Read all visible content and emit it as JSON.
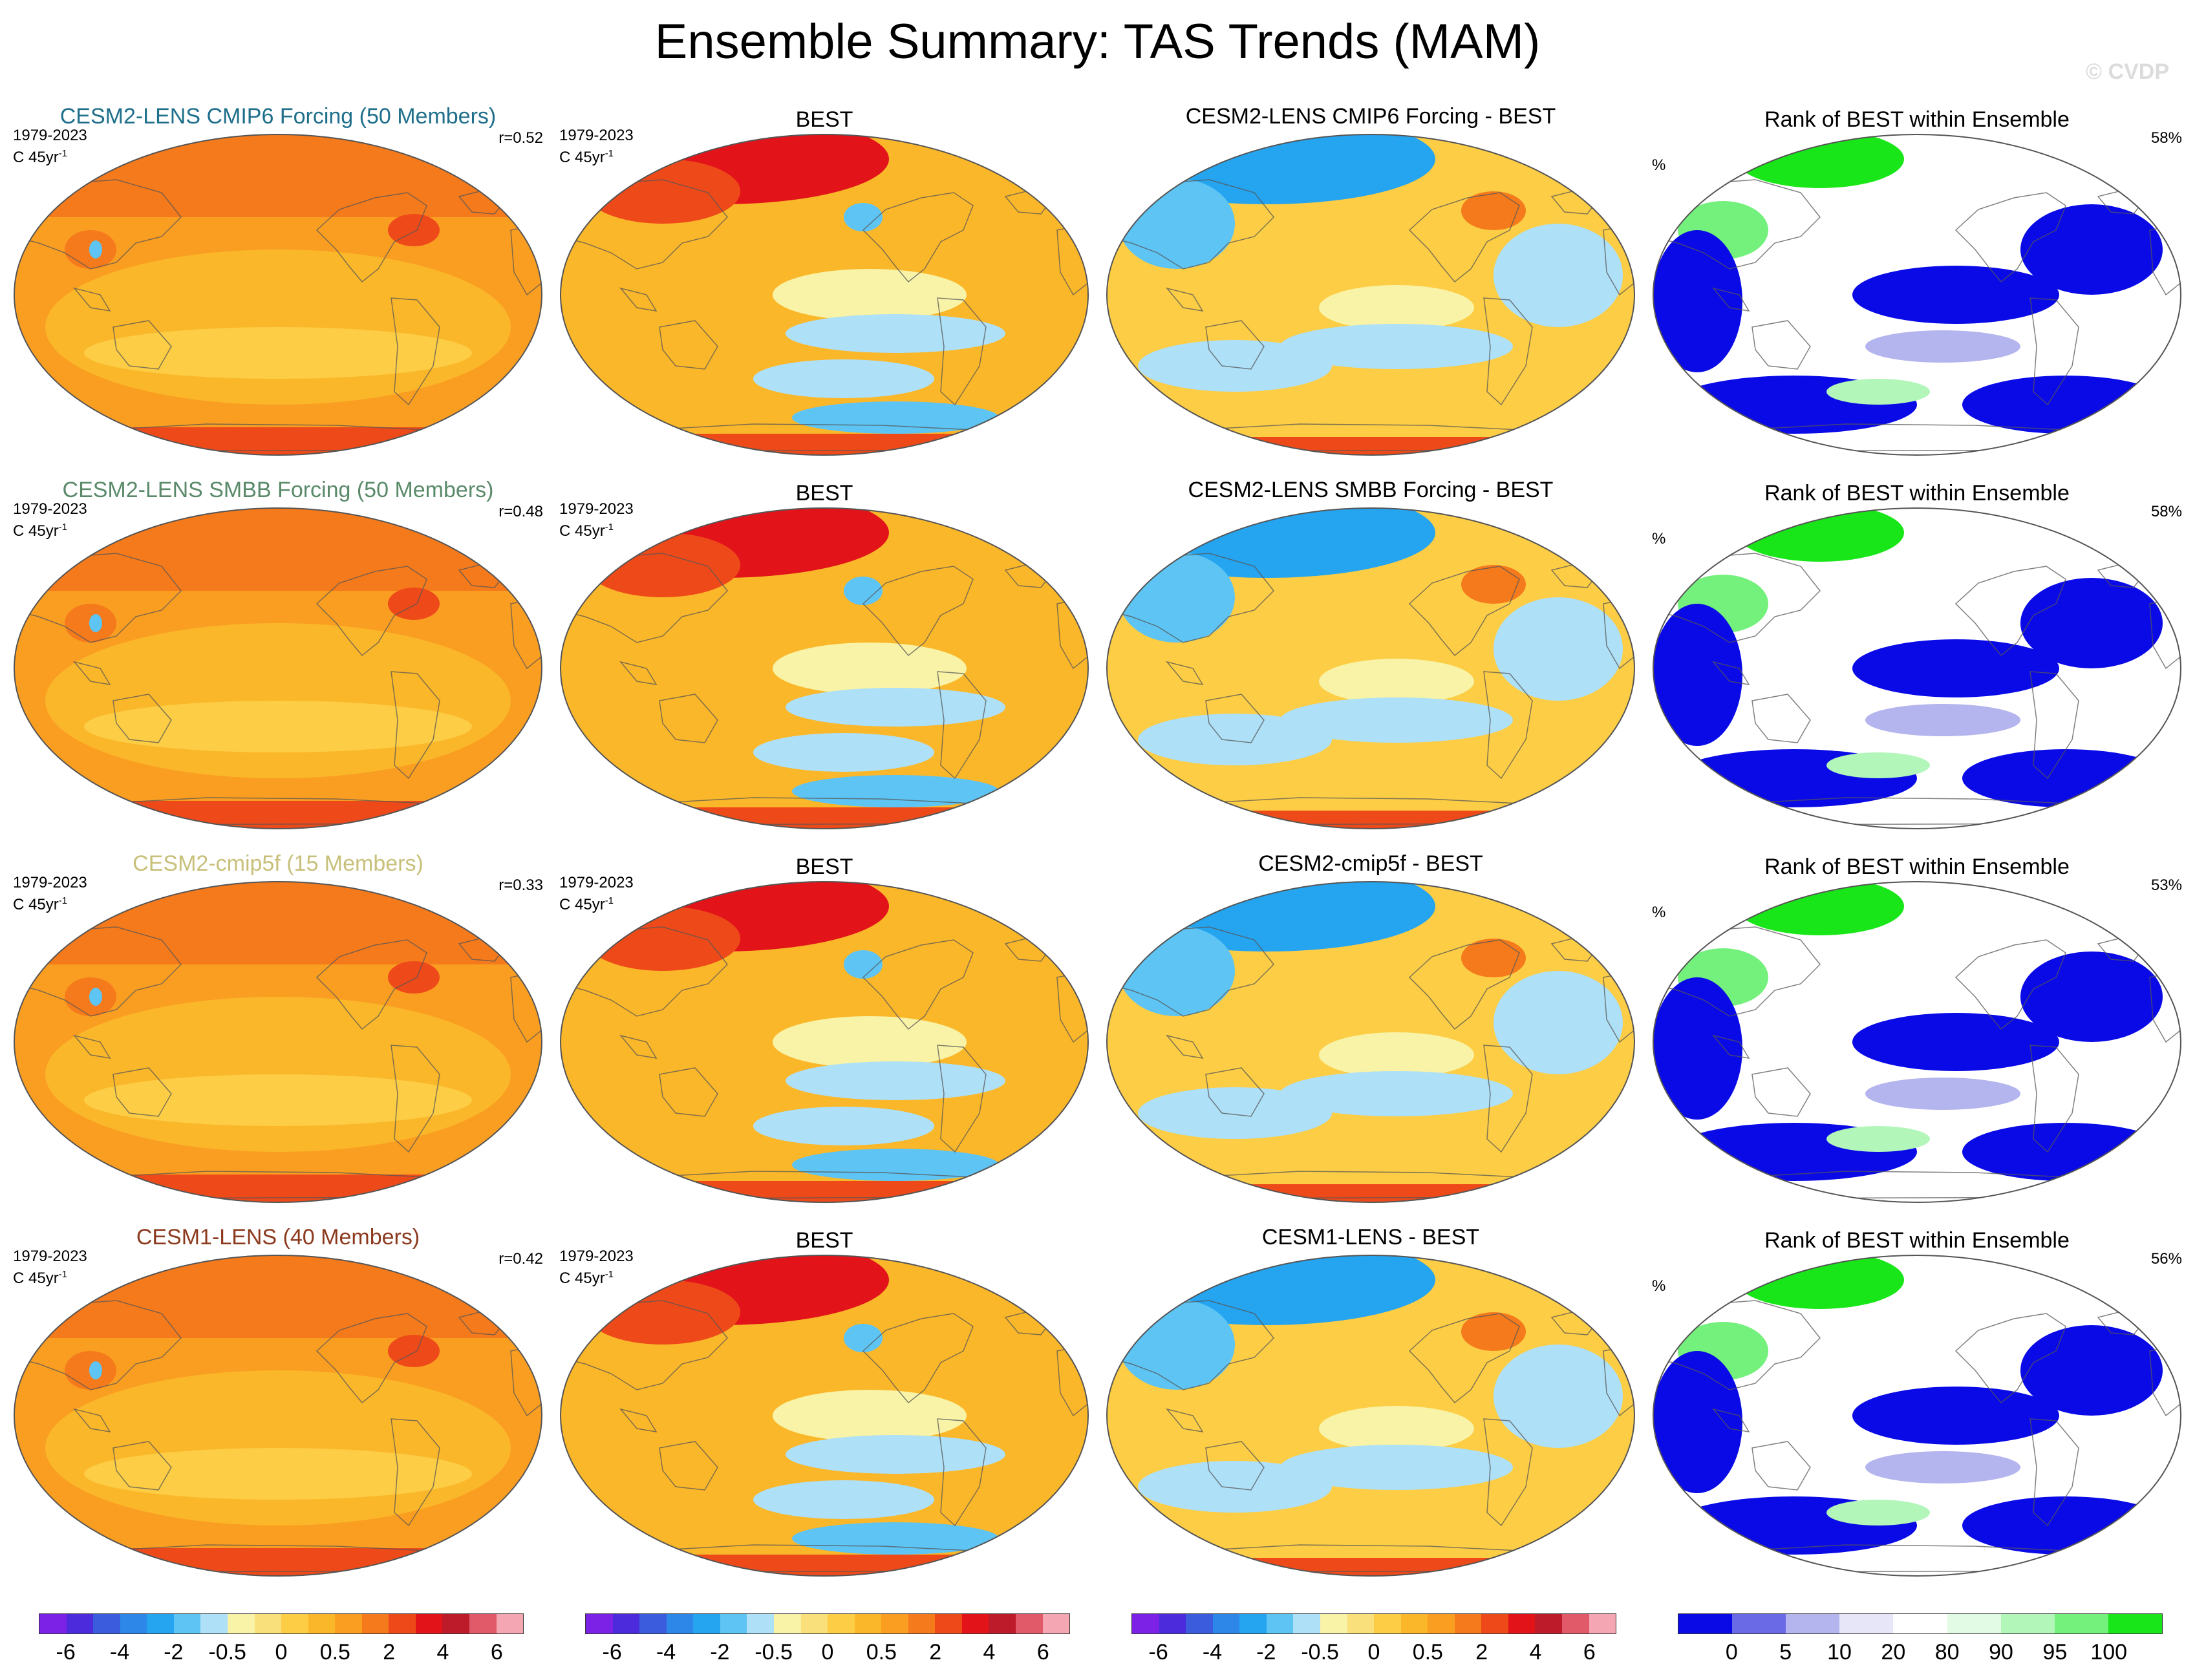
{
  "figure": {
    "title": "Ensemble Summary: TAS Trends (MAM)",
    "watermark": "© CVDP"
  },
  "colors": {
    "row_titles": [
      "#1f6f8b",
      "#5a8a6a",
      "#c8c07a",
      "#8b3a1e"
    ],
    "trend_palette": [
      "#7b22e6",
      "#4b2bdc",
      "#3b5ddd",
      "#2d87e8",
      "#25a4f0",
      "#5dc4f4",
      "#aee0f7",
      "#f8f3a6",
      "#f9e07a",
      "#fccd45",
      "#fbb72a",
      "#fa9e22",
      "#f57a1c",
      "#ee4a19",
      "#e2141a",
      "#bd1a2a",
      "#e05a6a",
      "#f4a6b2"
    ],
    "rank_palette": [
      "#0a0ae6",
      "#6a6ae6",
      "#b4b4ee",
      "#e6e6f8",
      "#ffffff",
      "#e2fbe4",
      "#b2f6ba",
      "#74f07c",
      "#19e619"
    ]
  },
  "chart_data": {
    "type": "map-panels",
    "rows": [
      {
        "ensemble_title": "CESM2-LENS CMIP6 Forcing (50 Members)",
        "period": "1979-2023",
        "units": "C 45yr",
        "units_exp": "-1",
        "pattern_correlation": "r=0.52",
        "obs_title": "BEST",
        "diff_title": "CESM2-LENS CMIP6 Forcing - BEST",
        "rank_title": "Rank of BEST within Ensemble",
        "rank_units": "%",
        "rank_percent": "58%"
      },
      {
        "ensemble_title": "CESM2-LENS SMBB Forcing (50 Members)",
        "period": "1979-2023",
        "units": "C 45yr",
        "units_exp": "-1",
        "pattern_correlation": "r=0.48",
        "obs_title": "BEST",
        "diff_title": "CESM2-LENS SMBB Forcing - BEST",
        "rank_title": "Rank of BEST within Ensemble",
        "rank_units": "%",
        "rank_percent": "58%"
      },
      {
        "ensemble_title": "CESM2-cmip5f (15 Members)",
        "period": "1979-2023",
        "units": "C 45yr",
        "units_exp": "-1",
        "pattern_correlation": "r=0.33",
        "obs_title": "BEST",
        "diff_title": "CESM2-cmip5f - BEST",
        "rank_title": "Rank of BEST within Ensemble",
        "rank_units": "%",
        "rank_percent": "53%"
      },
      {
        "ensemble_title": "CESM1-LENS (40 Members)",
        "period": "1979-2023",
        "units": "C 45yr",
        "units_exp": "-1",
        "pattern_correlation": "r=0.42",
        "obs_title": "BEST",
        "diff_title": "CESM1-LENS - BEST",
        "rank_title": "Rank of BEST within Ensemble",
        "rank_units": "%",
        "rank_percent": "56%"
      }
    ],
    "trend_colorbar_labels": [
      "-6",
      "-4",
      "-2",
      "-0.5",
      "0",
      "0.5",
      "2",
      "4",
      "6"
    ],
    "rank_colorbar_labels": [
      "0",
      "5",
      "10",
      "20",
      "80",
      "90",
      "95",
      "100"
    ]
  }
}
